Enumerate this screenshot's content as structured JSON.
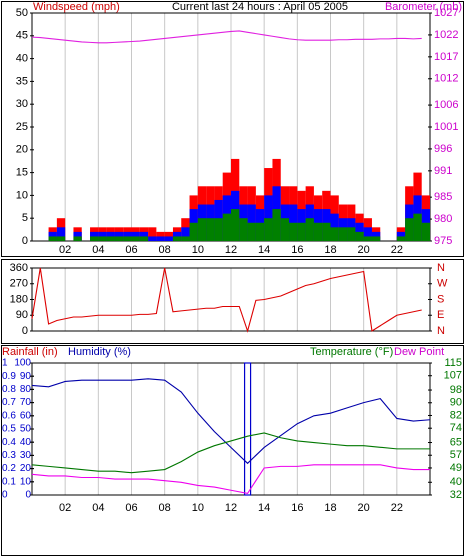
{
  "chart_data": [
    {
      "type": "bar",
      "title": "Current last 24 hours : April 05 2005",
      "ylabel": "Windspeed (mph)",
      "y2label": "Barometer (mb)",
      "xlim": [
        0,
        24
      ],
      "xticks": [
        {
          "value": 2,
          "label": "02"
        },
        {
          "value": 4,
          "label": "04"
        },
        {
          "value": 6,
          "label": "06"
        },
        {
          "value": 8,
          "label": "08"
        },
        10,
        12,
        14,
        16,
        18,
        20,
        22
      ],
      "ylim": [
        0,
        50
      ],
      "yticks": [
        0,
        5,
        10,
        15,
        20,
        25,
        30,
        35,
        40,
        45,
        50
      ],
      "y2lim": [
        975,
        1027
      ],
      "y2ticks": [
        975,
        980,
        985,
        991,
        996,
        1001,
        1006,
        1012,
        1017,
        1022,
        1027
      ],
      "grid": true,
      "x": [
        0,
        0.5,
        1,
        1.5,
        2,
        2.5,
        3,
        3.5,
        4,
        4.5,
        5,
        5.5,
        6,
        6.5,
        7,
        7.5,
        8,
        8.5,
        9,
        9.5,
        10,
        10.5,
        11,
        11.5,
        12,
        12.5,
        13,
        13.5,
        14,
        14.5,
        15,
        15.5,
        16,
        16.5,
        17,
        17.5,
        18,
        18.5,
        19,
        19.5,
        20,
        20.5,
        21,
        21.5,
        22,
        22.5,
        23,
        23.5
      ],
      "series": [
        {
          "color": "#ff0000",
          "type": "bar",
          "values": [
            0,
            0,
            3,
            5,
            0,
            3,
            0,
            3,
            3,
            3,
            3,
            3,
            3,
            3,
            3,
            2,
            2,
            3,
            5,
            10,
            12,
            12,
            12,
            15,
            18,
            12,
            12,
            10,
            16,
            18,
            12,
            12,
            11,
            12,
            10,
            11,
            10,
            8,
            8,
            6,
            5,
            3,
            0,
            0,
            3,
            12,
            15,
            10
          ]
        },
        {
          "color": "#0000ff",
          "type": "bar",
          "values": [
            0,
            0,
            2,
            3,
            0,
            2,
            0,
            2,
            2,
            2,
            2,
            2,
            2,
            2,
            1,
            1,
            1,
            2,
            3,
            7,
            8,
            8,
            9,
            10,
            11,
            8,
            8,
            7,
            10,
            12,
            8,
            8,
            7,
            8,
            7,
            7,
            6,
            5,
            5,
            4,
            3,
            2,
            0,
            0,
            2,
            8,
            10,
            7
          ]
        },
        {
          "color": "#008000",
          "type": "bar",
          "values": [
            0,
            0,
            1,
            1,
            0,
            1,
            0,
            1,
            1,
            1,
            1,
            1,
            1,
            1,
            0,
            0,
            0,
            1,
            1,
            4,
            5,
            5,
            5,
            6,
            7,
            5,
            4,
            4,
            5,
            7,
            5,
            4,
            4,
            5,
            4,
            4,
            3,
            3,
            3,
            2,
            1,
            1,
            0,
            0,
            1,
            5,
            6,
            4
          ]
        },
        {
          "color": "#e020e0",
          "type": "line",
          "axis": "y2",
          "values": [
            1021.5,
            1021.4,
            1021.2,
            1021,
            1020.8,
            1020.6,
            1020.4,
            1020.3,
            1020.2,
            1020.2,
            1020.3,
            1020.4,
            1020.5,
            1020.6,
            1020.8,
            1021,
            1021.2,
            1021.4,
            1021.6,
            1021.8,
            1022,
            1022.2,
            1022.4,
            1022.6,
            1022.8,
            1022.9,
            1022.6,
            1022.3,
            1022,
            1021.7,
            1021.4,
            1021.1,
            1020.9,
            1020.8,
            1020.8,
            1020.8,
            1020.8,
            1020.9,
            1020.9,
            1021,
            1021,
            1021,
            1021.1,
            1021.1,
            1021.2,
            1021.2,
            1021.1,
            1021.2
          ]
        }
      ]
    },
    {
      "type": "line",
      "xlim": [
        0,
        24
      ],
      "ylim": [
        0,
        360
      ],
      "yticks": [
        0,
        90,
        180,
        270,
        360
      ],
      "y2lim": [
        0,
        360
      ],
      "y2ticks": [
        {
          "value": 0,
          "label": "N"
        },
        {
          "value": 90,
          "label": "E"
        },
        {
          "value": 180,
          "label": "S"
        },
        {
          "value": 270,
          "label": "W"
        },
        {
          "value": 360,
          "label": "N"
        }
      ],
      "x": [
        0,
        0.5,
        1,
        1.5,
        2,
        2.5,
        3,
        3.5,
        4,
        4.5,
        5,
        5.5,
        6,
        6.5,
        7,
        7.5,
        8,
        8.5,
        9,
        9.5,
        10,
        10.5,
        11,
        11.5,
        12,
        12.5,
        13,
        13.5,
        14,
        14.5,
        15,
        15.5,
        16,
        16.5,
        17,
        17.5,
        18,
        18.5,
        19,
        19.5,
        20,
        20.5,
        21,
        21.5,
        22,
        22.5,
        23,
        23.5
      ],
      "series": [
        {
          "color": "#dd0000",
          "values": [
            70,
            360,
            40,
            60,
            70,
            80,
            80,
            85,
            90,
            90,
            90,
            90,
            90,
            95,
            95,
            100,
            360,
            110,
            115,
            120,
            125,
            130,
            130,
            140,
            140,
            140,
            0,
            175,
            180,
            190,
            200,
            220,
            240,
            260,
            270,
            285,
            300,
            310,
            320,
            330,
            340,
            0,
            30,
            60,
            90,
            100,
            110,
            120
          ]
        }
      ]
    },
    {
      "type": "line",
      "xlim": [
        0,
        24
      ],
      "xticks": [
        {
          "value": 2,
          "label": "02"
        },
        {
          "value": 4,
          "label": "04"
        },
        {
          "value": 6,
          "label": "06"
        },
        {
          "value": 8,
          "label": "08"
        },
        10,
        12,
        14,
        16,
        18,
        20,
        22
      ],
      "ylim": [
        0,
        1
      ],
      "yticks": [
        0,
        0.1,
        0.2,
        0.3,
        0.4,
        0.5,
        0.6,
        0.7,
        0.8,
        0.9,
        1
      ],
      "y3lim": [
        0,
        100
      ],
      "y3ticks": [
        0,
        10,
        20,
        30,
        40,
        50,
        60,
        70,
        80,
        90,
        100
      ],
      "y2lim": [
        32,
        115
      ],
      "y2ticks": [
        32,
        40,
        49,
        57,
        65,
        74,
        82,
        90,
        98,
        107,
        115
      ],
      "grid": true,
      "x": [
        0,
        1,
        2,
        3,
        4,
        5,
        6,
        7,
        8,
        9,
        10,
        11,
        12,
        13,
        14,
        15,
        16,
        17,
        18,
        19,
        20,
        21,
        22,
        23,
        24
      ],
      "series": [
        {
          "name": "Rainfall (in)",
          "color": "#0000cc",
          "type": "bar",
          "values": [
            0,
            0,
            0,
            0,
            0,
            0,
            0,
            0,
            0,
            0,
            0,
            0,
            0,
            1,
            0,
            0,
            0,
            0,
            0,
            0,
            0,
            0,
            0,
            0,
            0
          ]
        },
        {
          "name": "Humidity (%)",
          "color": "#0000aa",
          "axis": "y3",
          "values": [
            83,
            82,
            86,
            87,
            87,
            87,
            87,
            88,
            87,
            78,
            62,
            48,
            36,
            24,
            36,
            45,
            54,
            60,
            62,
            66,
            70,
            73,
            58,
            56,
            57
          ]
        },
        {
          "name": "Temperature (°F)",
          "color": "#007700",
          "axis": "y2",
          "values": [
            51,
            50,
            49,
            48,
            47,
            47,
            46,
            47,
            48,
            53,
            59,
            63,
            66,
            69,
            71,
            68,
            66,
            65,
            64,
            63,
            63,
            62,
            61,
            61,
            61
          ]
        },
        {
          "name": "Dew Point",
          "color": "#ee00ee",
          "axis": "y2",
          "values": [
            45,
            44,
            44,
            43,
            43,
            42,
            42,
            42,
            41,
            40,
            38,
            37,
            35,
            33,
            49,
            50,
            50,
            51,
            51,
            51,
            51,
            51,
            49,
            48,
            48
          ]
        }
      ]
    }
  ]
}
